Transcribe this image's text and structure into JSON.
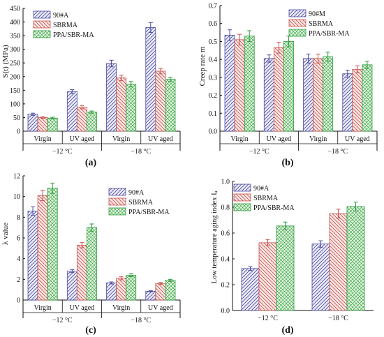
{
  "colors": {
    "series": [
      "#4a4aa0",
      "#c8504a",
      "#2a9a3a"
    ],
    "fills": [
      "#ebebf7",
      "#f8e8e6",
      "#dff4dc"
    ],
    "axis": "#111111"
  },
  "chart_data": [
    {
      "panel": "(a)",
      "type": "bar",
      "ylabel": "S(t) (MPa)",
      "ylim": [
        0,
        450
      ],
      "yticks": [
        0,
        50,
        100,
        150,
        200,
        250,
        300,
        350,
        400,
        450
      ],
      "categories": [
        "Virgin",
        "UV aged",
        "Virgin",
        "UV aged"
      ],
      "groups": [
        "−12 °C",
        "−18 °C"
      ],
      "legend_position": "top-left",
      "grid": false,
      "series": [
        {
          "name": "90#A",
          "values": [
            62,
            145,
            248,
            380
          ],
          "errors": [
            4,
            7,
            12,
            18
          ]
        },
        {
          "name": "SBRMA",
          "values": [
            50,
            88,
            195,
            220
          ],
          "errors": [
            3,
            6,
            10,
            10
          ]
        },
        {
          "name": "PPA/SBR-MA",
          "values": [
            48,
            70,
            172,
            190
          ],
          "errors": [
            3,
            4,
            10,
            8
          ]
        }
      ]
    },
    {
      "panel": "(b)",
      "type": "bar",
      "ylabel": "Creep rate m",
      "ylim": [
        0.0,
        0.7
      ],
      "yticks": [
        0.0,
        0.1,
        0.2,
        0.3,
        0.4,
        0.5,
        0.6,
        0.7
      ],
      "categories": [
        "Virgin",
        "UV aged",
        "Virgin",
        "UV aged"
      ],
      "groups": [
        "−12 °C",
        "−18 °C"
      ],
      "legend_position": "top-right",
      "grid": false,
      "series": [
        {
          "name": "90#M",
          "values": [
            0.535,
            0.405,
            0.405,
            0.32
          ],
          "errors": [
            0.03,
            0.02,
            0.025,
            0.02
          ]
        },
        {
          "name": "SBRMA",
          "values": [
            0.51,
            0.465,
            0.405,
            0.345
          ],
          "errors": [
            0.03,
            0.03,
            0.025,
            0.02
          ]
        },
        {
          "name": "PPA/SBR-MA",
          "values": [
            0.53,
            0.5,
            0.415,
            0.37
          ],
          "errors": [
            0.03,
            0.03,
            0.025,
            0.02
          ]
        }
      ]
    },
    {
      "panel": "(c)",
      "type": "bar",
      "ylabel": "λ value",
      "ylim": [
        0,
        12
      ],
      "yticks": [
        0,
        2,
        4,
        6,
        8,
        10,
        12
      ],
      "categories": [
        "Virgin",
        "UV aged",
        "Virgin",
        "UV aged"
      ],
      "groups": [
        "−12 °C",
        "−18 °C"
      ],
      "legend_position": "top-right",
      "grid": false,
      "series": [
        {
          "name": "90#A",
          "values": [
            8.6,
            2.8,
            1.65,
            0.85
          ],
          "errors": [
            0.4,
            0.15,
            0.1,
            0.05
          ]
        },
        {
          "name": "SBRMA",
          "values": [
            10.1,
            5.3,
            2.1,
            1.6
          ],
          "errors": [
            0.5,
            0.25,
            0.15,
            0.1
          ]
        },
        {
          "name": "PPA/SBR-MA",
          "values": [
            10.8,
            7.0,
            2.4,
            1.9
          ],
          "errors": [
            0.5,
            0.35,
            0.15,
            0.1
          ]
        }
      ]
    },
    {
      "panel": "(d)",
      "type": "bar",
      "ylabel": "Low temperature aging index Iₐ",
      "ylim": [
        0.0,
        1.0
      ],
      "yticks": [
        0.0,
        0.2,
        0.4,
        0.6,
        0.8,
        1.0
      ],
      "categories": [
        "−12 °C",
        "−18 °C"
      ],
      "groups": [],
      "legend_position": "top-left",
      "grid": false,
      "series": [
        {
          "name": "90#A",
          "values": [
            0.325,
            0.515
          ],
          "errors": [
            0.015,
            0.025
          ]
        },
        {
          "name": "SBRMA",
          "values": [
            0.525,
            0.75
          ],
          "errors": [
            0.025,
            0.035
          ]
        },
        {
          "name": "PPA/SBR-MA",
          "values": [
            0.655,
            0.805
          ],
          "errors": [
            0.03,
            0.035
          ]
        }
      ]
    }
  ]
}
